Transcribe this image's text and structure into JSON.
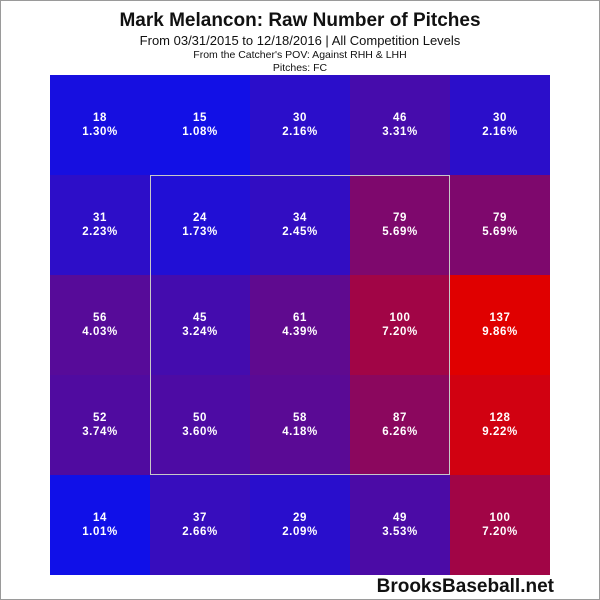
{
  "title": "Mark Melancon: Raw Number of Pitches",
  "subtitle": "From 03/31/2015 to 12/18/2016 | All Competition Levels",
  "note_pov": "From the Catcher's POV:  Against RHH & LHH",
  "note_pitches": "Pitches:  FC",
  "brand": "BrooksBaseball.net",
  "chart_data": {
    "type": "heatmap",
    "rows": 5,
    "cols": 5,
    "color_low": "#1010e8",
    "color_high": "#e00000",
    "strike_zone": "center 3x3 cells",
    "cells": [
      [
        {
          "count": 18,
          "pct": "1.30%"
        },
        {
          "count": 15,
          "pct": "1.08%"
        },
        {
          "count": 30,
          "pct": "2.16%"
        },
        {
          "count": 46,
          "pct": "3.31%"
        },
        {
          "count": 30,
          "pct": "2.16%"
        }
      ],
      [
        {
          "count": 31,
          "pct": "2.23%"
        },
        {
          "count": 24,
          "pct": "1.73%"
        },
        {
          "count": 34,
          "pct": "2.45%"
        },
        {
          "count": 79,
          "pct": "5.69%"
        },
        {
          "count": 79,
          "pct": "5.69%"
        }
      ],
      [
        {
          "count": 56,
          "pct": "4.03%"
        },
        {
          "count": 45,
          "pct": "3.24%"
        },
        {
          "count": 61,
          "pct": "4.39%"
        },
        {
          "count": 100,
          "pct": "7.20%"
        },
        {
          "count": 137,
          "pct": "9.86%"
        }
      ],
      [
        {
          "count": 52,
          "pct": "3.74%"
        },
        {
          "count": 50,
          "pct": "3.60%"
        },
        {
          "count": 58,
          "pct": "4.18%"
        },
        {
          "count": 87,
          "pct": "6.26%"
        },
        {
          "count": 128,
          "pct": "9.22%"
        }
      ],
      [
        {
          "count": 14,
          "pct": "1.01%"
        },
        {
          "count": 37,
          "pct": "2.66%"
        },
        {
          "count": 29,
          "pct": "2.09%"
        },
        {
          "count": 49,
          "pct": "3.53%"
        },
        {
          "count": 100,
          "pct": "7.20%"
        }
      ]
    ]
  }
}
